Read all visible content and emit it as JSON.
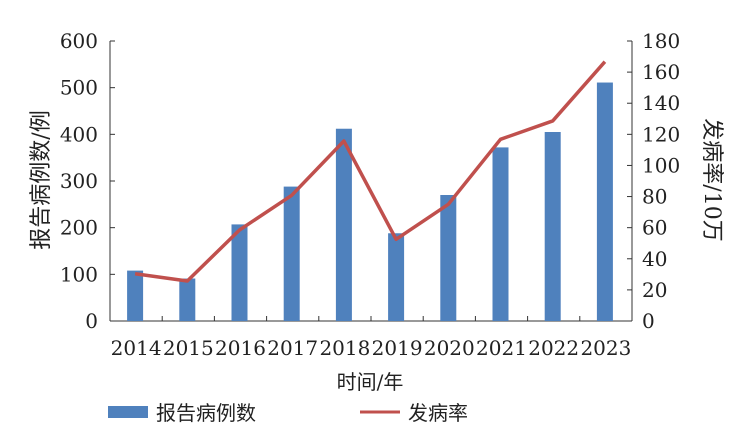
{
  "chart_data": {
    "type": "bar+line",
    "categories": [
      "2014",
      "2015",
      "2016",
      "2017",
      "2018",
      "2019",
      "2020",
      "2021",
      "2022",
      "2023"
    ],
    "series": [
      {
        "name": "报告病例数",
        "type": "bar",
        "axis": "left",
        "color": "#4f81bd",
        "values": [
          108,
          91,
          207,
          288,
          412,
          188,
          270,
          372,
          405,
          511
        ]
      },
      {
        "name": "发病率",
        "type": "line",
        "axis": "right",
        "color": "#c0504d",
        "values": [
          30.4,
          25.7,
          58.5,
          80.8,
          115.7,
          52.5,
          75.0,
          116.8,
          128.6,
          166.7
        ]
      }
    ],
    "xlabel": "时间/年",
    "ylabel": "报告病例数/例",
    "y2label": "发病率/10万",
    "ylim": [
      0,
      600
    ],
    "y2lim": [
      0,
      180
    ],
    "yticks": [
      "0",
      "100",
      "200",
      "300",
      "400",
      "500",
      "600"
    ],
    "y2ticks": [
      "0",
      "20",
      "40",
      "60",
      "80",
      "100",
      "120",
      "140",
      "160",
      "180"
    ],
    "grid": false,
    "legend": "bottom"
  }
}
